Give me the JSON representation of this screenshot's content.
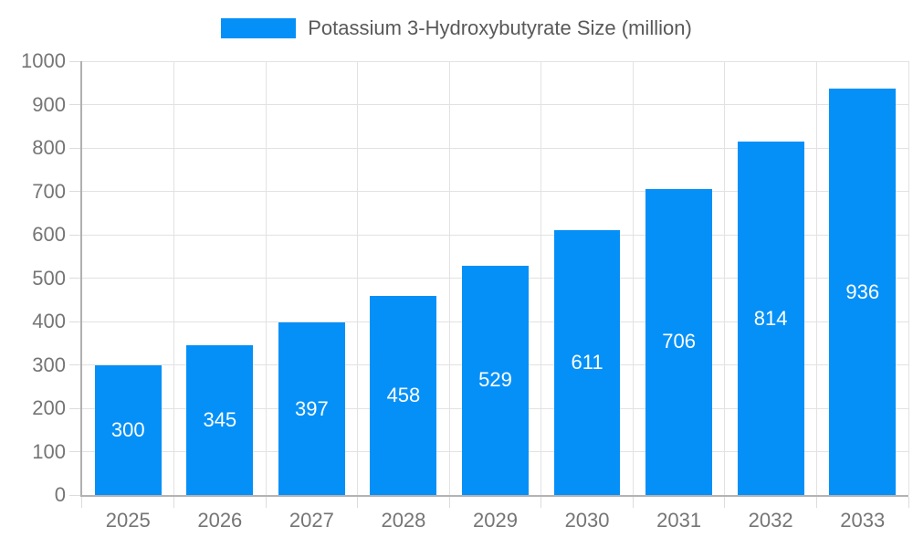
{
  "chart_data": {
    "type": "bar",
    "title": "",
    "legend": {
      "label": "Potassium 3-Hydroxybutyrate Size (million)",
      "position": "top-center"
    },
    "categories": [
      "2025",
      "2026",
      "2027",
      "2028",
      "2029",
      "2030",
      "2031",
      "2032",
      "2033"
    ],
    "values": [
      300,
      345,
      397,
      458,
      529,
      611,
      706,
      814,
      936
    ],
    "bar_labels": [
      "300",
      "345",
      "397",
      "458",
      "529",
      "611",
      "706",
      "814",
      "936"
    ],
    "xlabel": "",
    "ylabel": "",
    "ylim": [
      0,
      1000
    ],
    "ytick_interval": 100,
    "ytick_labels": [
      "0",
      "100",
      "200",
      "300",
      "400",
      "500",
      "600",
      "700",
      "800",
      "900",
      "1000"
    ],
    "grid": "on",
    "colors": {
      "bar": "#0590f8",
      "bar_label": "#ffffff",
      "grid": "#e2e2e2",
      "axis_line": "#b0b0b0",
      "tick": "#dcdcdc",
      "axis_label": "#757575",
      "legend_text": "#595959",
      "background": "#ffffff"
    }
  }
}
